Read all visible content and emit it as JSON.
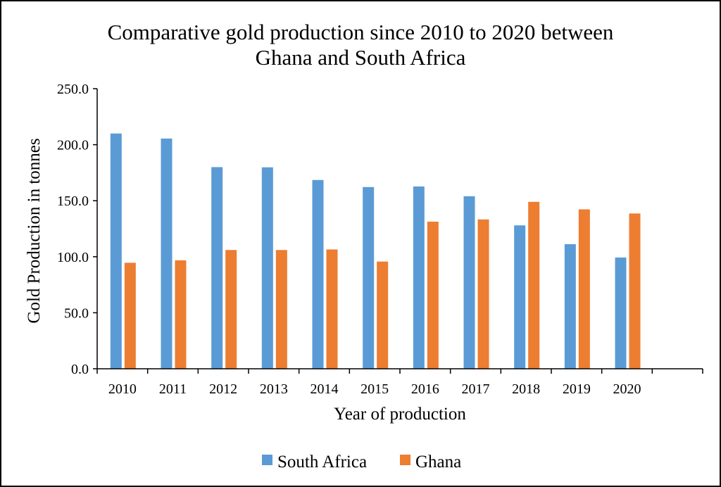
{
  "chart_data": {
    "type": "bar",
    "title_lines": [
      "Comparative gold production since 2010 to 2020 between",
      "Ghana and South Africa"
    ],
    "xlabel": "Year of production",
    "ylabel": "Gold Production in tonnes",
    "ylim": [
      0,
      250
    ],
    "yticks": [
      "0.0",
      "50.0",
      "100.0",
      "150.0",
      "200.0",
      "250.0"
    ],
    "categories": [
      "2010",
      "2011",
      "2012",
      "2013",
      "2014",
      "2015",
      "2016",
      "2017",
      "2018",
      "2019",
      "2020"
    ],
    "series": [
      {
        "name": "South Africa",
        "color": "#5b9bd5",
        "values": [
          210,
          205.5,
          180,
          179.8,
          168.5,
          162.2,
          162.7,
          154,
          128,
          111.2,
          99.3
        ]
      },
      {
        "name": "Ghana",
        "color": "#ed7d31",
        "values": [
          94.6,
          96.8,
          106,
          106,
          106.5,
          95.7,
          131.3,
          133.3,
          149,
          142.3,
          138.6
        ]
      }
    ],
    "grid": false,
    "legend": "bottom-center"
  }
}
